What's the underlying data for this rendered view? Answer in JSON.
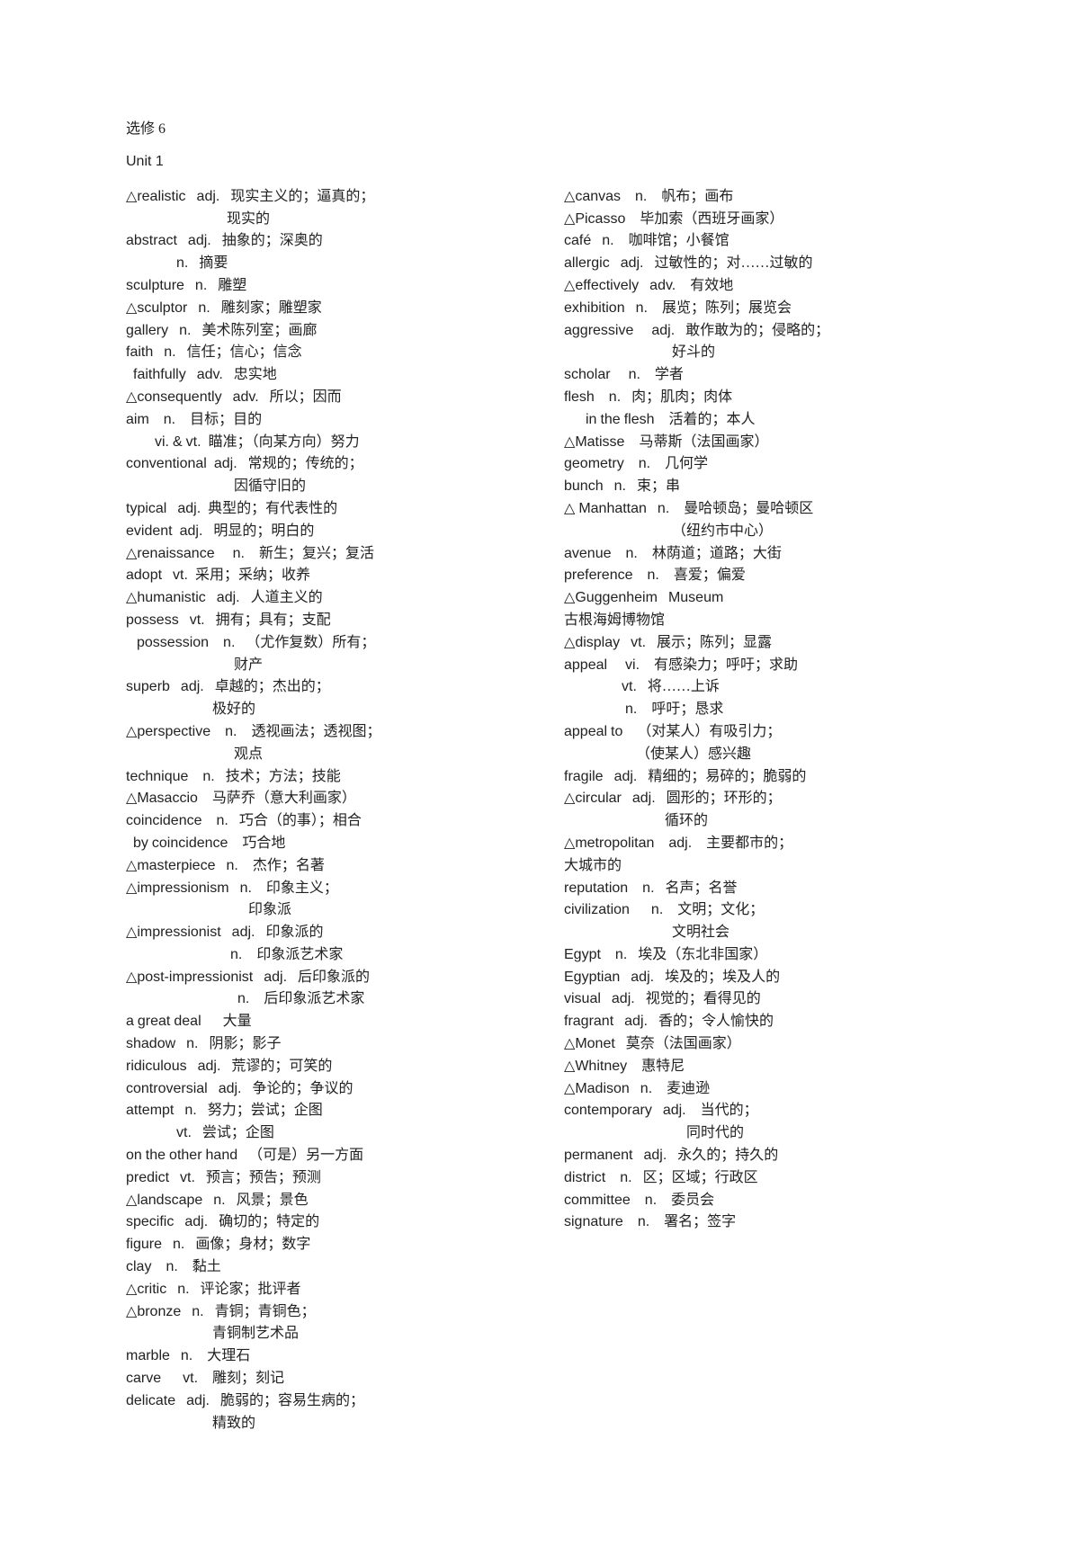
{
  "header": "选修 6",
  "unit": "Unit 1",
  "left": [
    "△realistic   adj.   现实主义的；逼真的；\n                            现实的",
    "abstract   adj.   抽象的；深奥的\n              n.   摘要",
    "sculpture   n.   雕塑",
    "△sculptor   n.   雕刻家；雕塑家",
    "gallery   n.   美术陈列室；画廊",
    "faith   n.   信任；信心；信念",
    "  faithfully   adv.   忠实地",
    "△consequently   adv.   所以；因而",
    "aim    n.    目标；目的\n        vi. & vt.  瞄准；（向某方向）努力",
    "conventional  adj.   常规的；传统的；\n                              因循守旧的",
    "typical   adj.  典型的；有代表性的",
    "evident  adj.   明显的；明白的",
    "△renaissance     n.    新生；复兴；复活",
    "adopt   vt.  采用；采纳；收养",
    "△humanistic   adj.   人道主义的",
    "possess   vt.   拥有；具有；支配",
    "   possession    n.   （尤作复数）所有；\n                              财产",
    "superb   adj.   卓越的；杰出的；\n                        极好的",
    "△perspective    n.    透视画法；透视图；\n                              观点",
    "technique    n.   技术；方法；技能",
    "△Masaccio    马萨乔（意大利画家）",
    "coincidence    n.   巧合（的事）；相合",
    "  by coincidence    巧合地",
    "△masterpiece   n.    杰作；名著",
    "△impressionism   n.    印象主义；\n                                  印象派",
    "△impressionist   adj.   印象派的\n                             n.    印象派艺术家",
    "△post-impressionist   adj.   后印象派的\n                               n.    后印象派艺术家",
    "a great deal      大量",
    "shadow   n.   阴影；影子",
    "ridiculous   adj.   荒谬的；可笑的",
    "controversial   adj.   争论的；争议的",
    "attempt   n.   努力；尝试；企图\n              vt.   尝试；企图",
    "on the other hand   （可是）另一方面",
    "predict   vt.   预言；预告；预测",
    "△landscape   n.   风景；景色",
    "specific   adj.   确切的；特定的",
    "figure   n.   画像；身材；数字",
    "clay    n.    黏土",
    "△critic   n.   评论家；批评者",
    "△bronze   n.   青铜；青铜色；\n                        青铜制艺术品",
    "marble   n.    大理石",
    "carve      vt.    雕刻；刻记",
    "delicate   adj.   脆弱的；容易生病的；\n                        精致的"
  ],
  "right": [
    "△canvas    n.    帆布；画布",
    "△Picasso    毕加索（西班牙画家）",
    "café   n.    咖啡馆；小餐馆",
    "allergic   adj.   过敏性的；对……过敏的",
    "△effectively   adv.    有效地",
    "exhibition   n.    展览；陈列；展览会",
    "aggressive     adj.   敢作敢为的；侵略的；\n                              好斗的",
    "scholar     n.    学者",
    "flesh    n.   肉；肌肉；肉体",
    "      in the flesh    活着的；本人",
    "△Matisse    马蒂斯（法国画家）",
    "geometry    n.    几何学",
    "bunch   n.   束；串",
    "△ Manhattan   n.    曼哈顿岛；曼哈顿区\n                              （纽约市中心）",
    "avenue    n.    林荫道；道路；大街",
    "preference    n.    喜爱；偏爱",
    "△Guggenheim   Museum\n古根海姆博物馆",
    "△display   vt.   展示；陈列；显露",
    "appeal     vi.    有感染力；呼吁；求助\n                vt.   将……上诉\n                 n.    呼吁；恳求",
    "appeal to    （对某人）有吸引力；\n                    （使某人）感兴趣",
    "fragile   adj.   精细的；易碎的；脆弱的",
    "△circular   adj.   圆形的；环形的；\n                            循环的",
    "△metropolitan    adj.    主要都市的；\n大城市的",
    "reputation    n.   名声；名誉",
    "civilization      n.    文明；文化；\n                              文明社会",
    "Egypt    n.   埃及（东北非国家）",
    "Egyptian   adj.   埃及的；埃及人的",
    "visual   adj.   视觉的；看得见的",
    "fragrant   adj.   香的；令人愉快的",
    "△Monet   莫奈（法国画家）",
    "△Whitney    惠特尼",
    "△Madison   n.    麦迪逊",
    "contemporary   adj.    当代的；\n                                  同时代的",
    "permanent   adj.   永久的；持久的",
    "district    n.   区；区域；行政区",
    "committee    n.    委员会",
    "signature    n.    署名；签字"
  ]
}
